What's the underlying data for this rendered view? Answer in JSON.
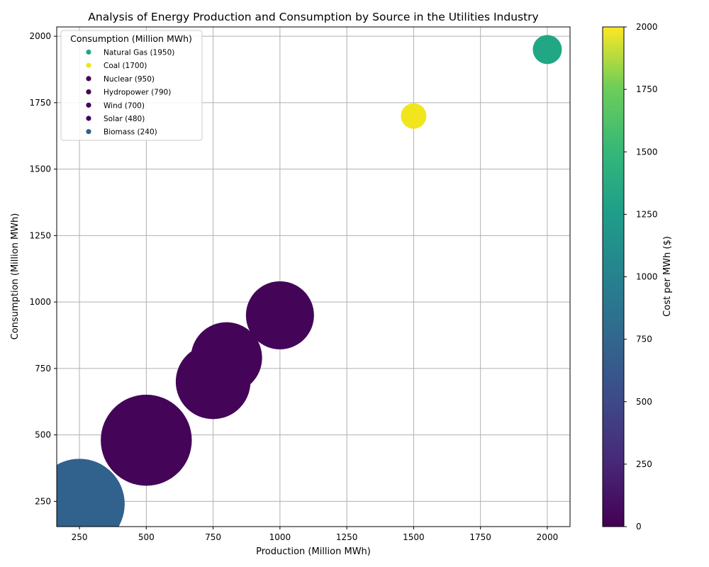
{
  "chart_data": {
    "type": "scatter",
    "title": "Analysis of Energy Production and Consumption by Source in the Utilities Industry",
    "xlabel": "Production (Million MWh)",
    "ylabel": "Consumption (Million MWh)",
    "xlim": [
      165,
      2085
    ],
    "ylim": [
      155,
      2035
    ],
    "xticks": [
      250,
      500,
      750,
      1000,
      1250,
      1500,
      1750,
      2000
    ],
    "yticks": [
      250,
      500,
      750,
      1000,
      1250,
      1500,
      1750,
      2000
    ],
    "grid": true,
    "legend": {
      "title": "Consumption (Million MWh)",
      "placement": "top-left"
    },
    "colorbar": {
      "label": "Cost per MWh ($)",
      "range": [
        0,
        2000
      ],
      "ticks": [
        0,
        250,
        500,
        750,
        1000,
        1250,
        1500,
        1750,
        2000
      ],
      "colormap": "viridis"
    },
    "points": [
      {
        "name": "Natural Gas",
        "legend_label": "Natural Gas (1950)",
        "x": 2000,
        "y": 1950,
        "size": 1,
        "color": "#21a784"
      },
      {
        "name": "Coal",
        "legend_label": "Coal (1700)",
        "x": 1500,
        "y": 1700,
        "size": 0.77,
        "color": "#f1e51d"
      },
      {
        "name": "Nuclear",
        "legend_label": "Nuclear (950)",
        "x": 1000,
        "y": 950,
        "size": 1.6,
        "color": "#440558"
      },
      {
        "name": "Hydropower",
        "legend_label": "Hydropower (790)",
        "x": 800,
        "y": 790,
        "size": 1.75,
        "color": "#440558"
      },
      {
        "name": "Wind",
        "legend_label": "Wind (700)",
        "x": 750,
        "y": 700,
        "size": 1.93,
        "color": "#440558"
      },
      {
        "name": "Solar",
        "legend_label": "Solar (480)",
        "x": 500,
        "y": 480,
        "size": 2.87,
        "color": "#440558"
      },
      {
        "name": "Biomass",
        "legend_label": "Biomass (240)",
        "x": 250,
        "y": 240,
        "size": 2.83,
        "color": "#31618d"
      }
    ]
  }
}
